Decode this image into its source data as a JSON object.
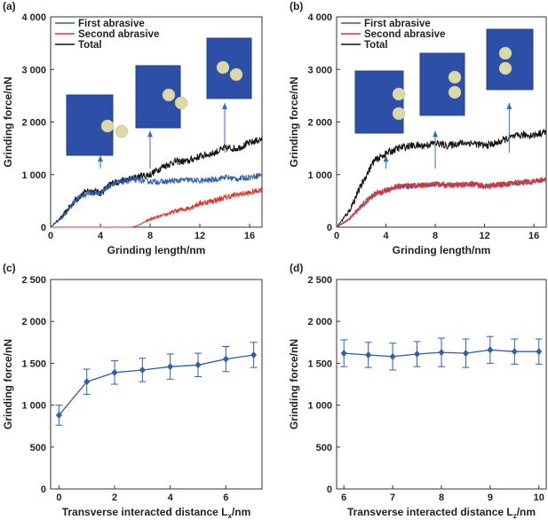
{
  "chart_data": [
    {
      "panel": "(a)",
      "type": "line",
      "xlabel": "Grinding length/nm",
      "ylabel": "Grinding force/nN",
      "xlim": [
        0,
        17
      ],
      "ylim": [
        0,
        4000
      ],
      "xticks": [
        "0",
        "4",
        "8",
        "12",
        "16"
      ],
      "yticks": [
        "0",
        "1 000",
        "2 000",
        "3 000",
        "4 000"
      ],
      "legend": [
        "First abrasive",
        "Second abrasive",
        "Total"
      ],
      "colors": [
        "#2f5fb3",
        "#e8302a",
        "#111111"
      ],
      "series": [
        {
          "name": "First abrasive",
          "x": [
            0,
            1,
            2,
            3,
            4,
            5,
            6,
            6.5,
            7,
            8,
            9,
            10,
            11,
            12,
            13,
            14,
            15,
            16,
            17
          ],
          "values": [
            0,
            200,
            520,
            650,
            650,
            830,
            880,
            900,
            900,
            870,
            860,
            880,
            900,
            880,
            900,
            950,
            920,
            950,
            1000
          ]
        },
        {
          "name": "Second abrasive",
          "x": [
            0,
            6,
            6.5,
            7,
            8,
            9,
            10,
            11,
            12,
            13,
            14,
            15,
            16,
            17
          ],
          "values": [
            0,
            0,
            0,
            30,
            150,
            220,
            300,
            360,
            450,
            500,
            560,
            620,
            650,
            720
          ]
        },
        {
          "name": "Total",
          "x": [
            0,
            1,
            2,
            3,
            4,
            5,
            6,
            7,
            8,
            9,
            10,
            11,
            12,
            13,
            14,
            15,
            16,
            17
          ],
          "values": [
            0,
            220,
            520,
            700,
            650,
            850,
            880,
            960,
            1000,
            1150,
            1250,
            1250,
            1350,
            1400,
            1500,
            1500,
            1600,
            1680
          ]
        }
      ],
      "annotations": [
        {
          "x": 4,
          "y": 1330,
          "desc": "two separated abrasives"
        },
        {
          "x": 8,
          "y": 1800,
          "desc": "abrasives closer"
        },
        {
          "x": 14,
          "y": 2330,
          "desc": "abrasives adjacent"
        }
      ]
    },
    {
      "panel": "(b)",
      "type": "line",
      "xlabel": "Grinding length/nm",
      "ylabel": "Grinding force/nN",
      "xlim": [
        0,
        17
      ],
      "ylim": [
        0,
        4000
      ],
      "xticks": [
        "0",
        "4",
        "8",
        "12",
        "16"
      ],
      "yticks": [
        "0",
        "1 000",
        "2 000",
        "3 000",
        "4 000"
      ],
      "legend": [
        "First abrasive",
        "Second abrasive",
        "Total"
      ],
      "colors": [
        "#2f5fb3",
        "#e8302a",
        "#111111"
      ],
      "series": [
        {
          "name": "First abrasive",
          "x": [
            0,
            1,
            2,
            3,
            4,
            5,
            6,
            7,
            8,
            9,
            10,
            11,
            12,
            13,
            14,
            15,
            16,
            17
          ],
          "values": [
            0,
            150,
            400,
            620,
            700,
            780,
            780,
            800,
            820,
            800,
            800,
            820,
            780,
            800,
            820,
            850,
            860,
            900
          ]
        },
        {
          "name": "Second abrasive",
          "x": [
            0,
            1,
            2,
            3,
            4,
            5,
            6,
            7,
            8,
            9,
            10,
            11,
            12,
            13,
            14,
            15,
            16,
            17
          ],
          "values": [
            0,
            150,
            400,
            620,
            700,
            780,
            780,
            800,
            820,
            800,
            800,
            820,
            780,
            800,
            820,
            850,
            880,
            920
          ]
        },
        {
          "name": "Total",
          "x": [
            0,
            1,
            2,
            3,
            4,
            5,
            6,
            7,
            8,
            9,
            10,
            11,
            12,
            13,
            14,
            15,
            16,
            17
          ],
          "values": [
            0,
            300,
            800,
            1250,
            1400,
            1500,
            1550,
            1550,
            1600,
            1550,
            1600,
            1600,
            1550,
            1600,
            1700,
            1750,
            1750,
            1820
          ]
        }
      ],
      "annotations": [
        {
          "x": 4,
          "y": 1330,
          "desc": "two abrasives stacked, separated"
        },
        {
          "x": 8,
          "y": 1800,
          "desc": "two abrasives stacked, closer"
        },
        {
          "x": 14,
          "y": 2330,
          "desc": "two abrasives stacked, adjacent"
        }
      ]
    },
    {
      "panel": "(c)",
      "type": "line",
      "xlabel": "Transverse interacted distance L",
      "xlabel_sub": "x",
      "xlabel_unit": "/nm",
      "ylabel": "Grinding force/nN",
      "xlim": [
        -0.3,
        7.3
      ],
      "ylim": [
        0,
        2500
      ],
      "xticks": [
        "0",
        "2",
        "4",
        "6"
      ],
      "yticks": [
        "0",
        "500",
        "1 000",
        "1 500",
        "2 000",
        "2 500"
      ],
      "series": [
        {
          "name": "Grinding force",
          "x": [
            0,
            1,
            2,
            3,
            4,
            5,
            6,
            7
          ],
          "values": [
            880,
            1280,
            1390,
            1420,
            1460,
            1480,
            1550,
            1600
          ],
          "err": [
            120,
            150,
            140,
            140,
            150,
            140,
            150,
            150
          ]
        }
      ]
    },
    {
      "panel": "(d)",
      "type": "line",
      "xlabel": "Transverse interacted distance L",
      "xlabel_sub": "z",
      "xlabel_unit": "/nm",
      "ylabel": "Grinding force/nN",
      "xlim": [
        5.85,
        10.15
      ],
      "ylim": [
        0,
        2500
      ],
      "xticks": [
        "6",
        "7",
        "8",
        "9",
        "10"
      ],
      "yticks": [
        "0",
        "500",
        "1 000",
        "1 500",
        "2 000",
        "2 500"
      ],
      "series": [
        {
          "name": "Grinding force",
          "x": [
            6,
            6.5,
            7,
            7.5,
            8,
            8.5,
            9,
            9.5,
            10
          ],
          "values": [
            1620,
            1600,
            1580,
            1610,
            1630,
            1620,
            1660,
            1640,
            1640
          ],
          "err": [
            160,
            150,
            160,
            150,
            170,
            170,
            160,
            150,
            150
          ]
        }
      ]
    }
  ]
}
